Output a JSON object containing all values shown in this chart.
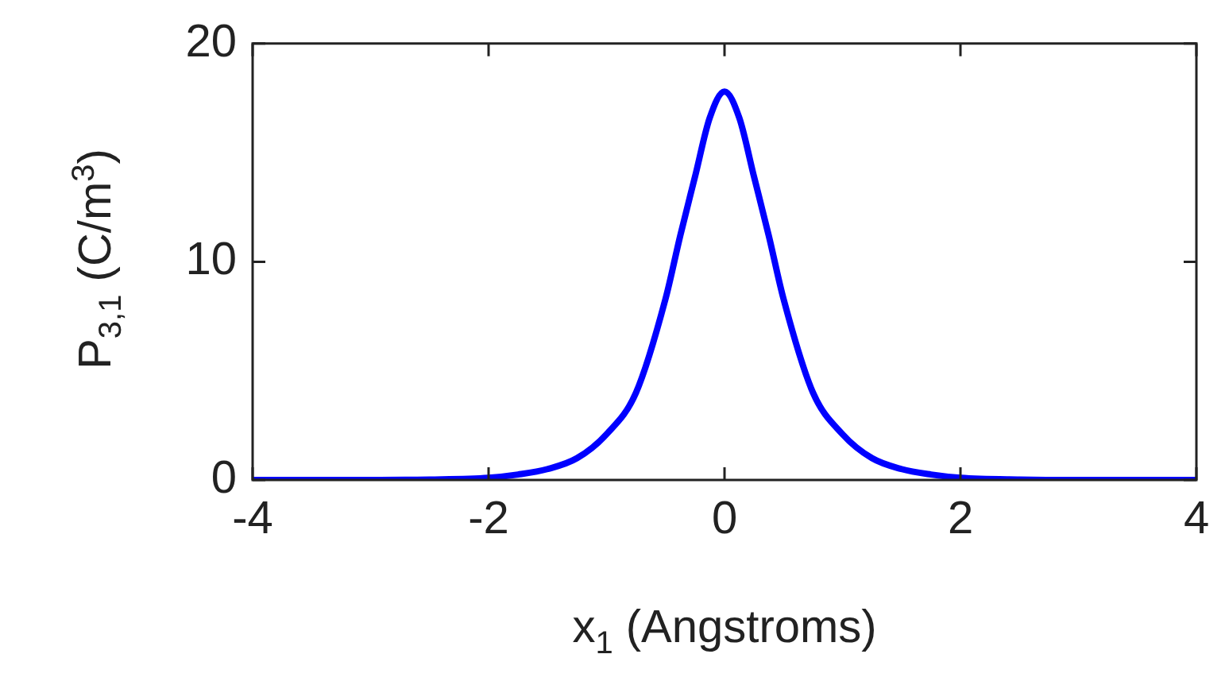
{
  "chart_data": {
    "type": "line",
    "xlabel": "x$_{1}$ (Angstroms)",
    "ylabel": "P$_{3,1}$ (C/m$^{3}$)",
    "x": [
      -4,
      -3,
      -2.5,
      -2,
      -1.75,
      -1.5,
      -1.25,
      -1,
      -0.75,
      -0.5,
      -0.375,
      -0.25,
      -0.125,
      0,
      0.125,
      0.25,
      0.375,
      0.5,
      0.75,
      1,
      1.25,
      1.5,
      1.75,
      2,
      2.5,
      3,
      4
    ],
    "series": [
      {
        "color": "#0000ff",
        "values": [
          0,
          0,
          0.02,
          0.1,
          0.25,
          0.5,
          1,
          2.1,
          4,
          8.3,
          11.2,
          13.9,
          16.6,
          17.8,
          16.6,
          13.9,
          11.2,
          8.3,
          4,
          2.1,
          1,
          0.5,
          0.25,
          0.1,
          0.02,
          0,
          0
        ]
      }
    ],
    "xlim": [
      -4,
      4
    ],
    "xticks": [
      -4,
      -2,
      0,
      2,
      4
    ],
    "ylim": [
      0,
      20
    ],
    "yticks": [
      0,
      10,
      20
    ],
    "grid": false,
    "legend": false,
    "marker": "none",
    "line_style": "solid"
  }
}
